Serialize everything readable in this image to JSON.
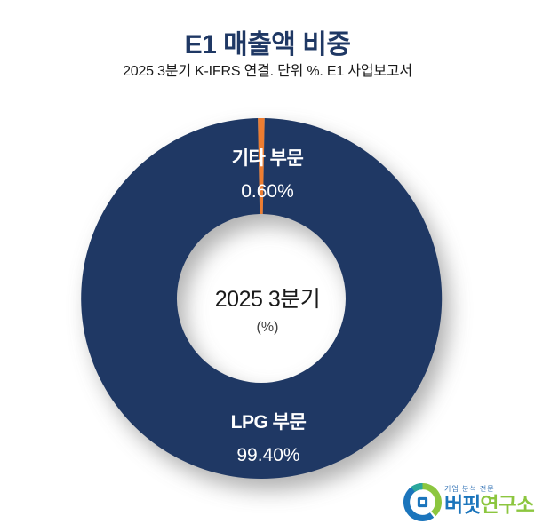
{
  "header": {
    "title": "E1 매출액 비중",
    "subtitle": "2025 3분기 K-IFRS 연결. 단위 %. E1 사업보고서"
  },
  "chart_data": {
    "type": "pie",
    "subtype": "donut",
    "title": "E1 매출액 비중",
    "unit": "%",
    "categories": [
      "기타 부문",
      "LPG 부문"
    ],
    "values": [
      0.6,
      99.4
    ],
    "segments": [
      {
        "label": "기타 부문",
        "value": 0.6,
        "display": "0.60%",
        "color": "#ed7d31"
      },
      {
        "label": "LPG 부문",
        "value": 99.4,
        "display": "99.40%",
        "color": "#1f3864"
      }
    ],
    "center_label": {
      "line1": "2025 3분기",
      "line2": "(%)"
    },
    "start_angle_deg": -1.1,
    "inner_radius_ratio": 0.47,
    "label_color": "#ffffff",
    "legend": "none",
    "source_note": "E1 사업보고서"
  },
  "logo": {
    "tagline": "기업 분석 전문",
    "name_part1": "버핏",
    "name_part2": "연구소",
    "colors": {
      "blue": "#1b75bc",
      "green": "#8cc63f",
      "teal": "#2ba79c"
    }
  }
}
